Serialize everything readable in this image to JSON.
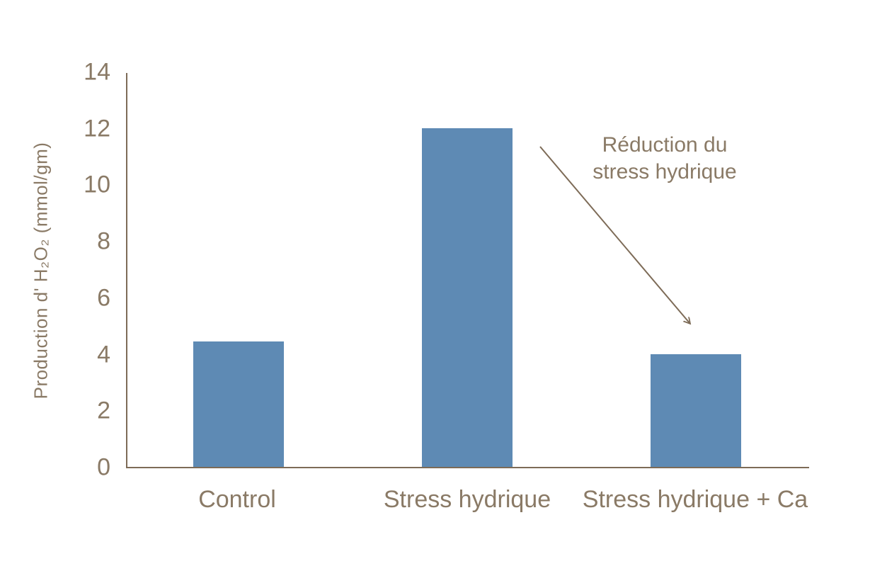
{
  "chart_data": {
    "type": "bar",
    "title": "",
    "xlabel": "",
    "ylabel": "Production d' H₂O₂ (mmol/gm)",
    "categories": [
      "Control",
      "Stress hydrique",
      "Stress hydrique + Ca"
    ],
    "values": [
      4.45,
      12,
      4
    ],
    "ylim": [
      0,
      14
    ],
    "yticks": [
      0,
      2,
      4,
      6,
      8,
      10,
      12,
      14
    ],
    "grid": false,
    "legend": null,
    "colors": {
      "bar": "#5e8ab4",
      "axis": "#7d6b57",
      "text": "#8a7a66",
      "background": "#ffffff"
    },
    "annotation": {
      "lines": [
        "Réduction du",
        "stress hydrique"
      ],
      "arrow_from": [
        763,
        207
      ],
      "arrow_to": [
        975,
        457
      ]
    }
  }
}
